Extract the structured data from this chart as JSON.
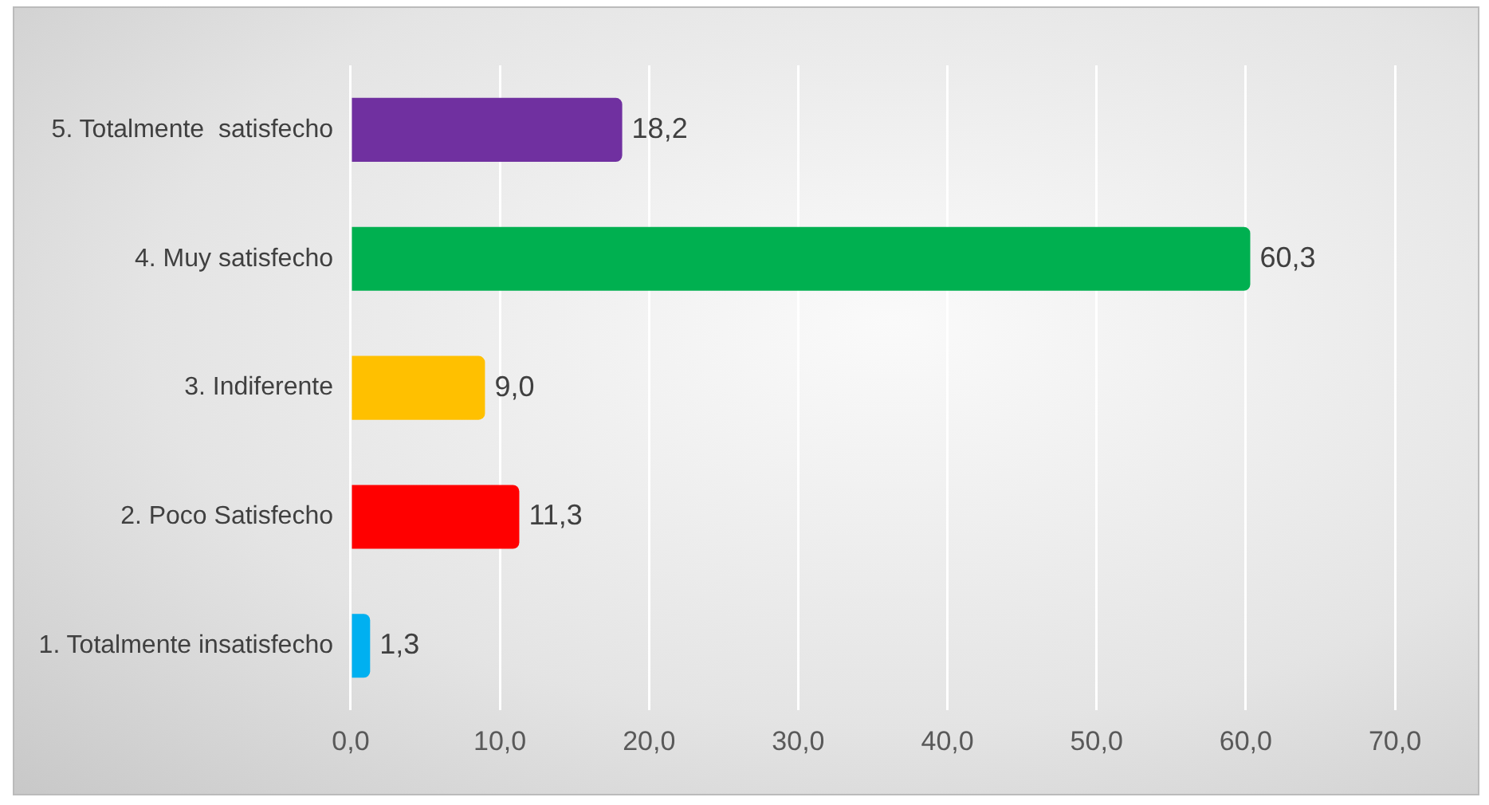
{
  "chart_data": {
    "type": "bar",
    "orientation": "horizontal",
    "categories": [
      "5. Totalmente  satisfecho",
      "4. Muy satisfecho",
      "3. Indiferente",
      "2. Poco Satisfecho",
      "1. Totalmente insatisfecho"
    ],
    "values": [
      18.2,
      60.3,
      9.0,
      11.3,
      1.3
    ],
    "colors": [
      "#7030a0",
      "#00b050",
      "#ffc000",
      "#ff0000",
      "#00b0f0"
    ],
    "value_labels": [
      "18,2",
      "60,3",
      "9,0",
      "11,3",
      "1,3"
    ],
    "xlim": [
      0,
      70
    ],
    "xticks": [
      {
        "value": 0,
        "label": "0,0"
      },
      {
        "value": 10,
        "label": "10,0"
      },
      {
        "value": 20,
        "label": "20,0"
      },
      {
        "value": 30,
        "label": "30,0"
      },
      {
        "value": 40,
        "label": "40,0"
      },
      {
        "value": 50,
        "label": "50,0"
      },
      {
        "value": 60,
        "label": "60,0"
      },
      {
        "value": 70,
        "label": "70,0"
      }
    ],
    "grid": "x",
    "legend": false
  }
}
